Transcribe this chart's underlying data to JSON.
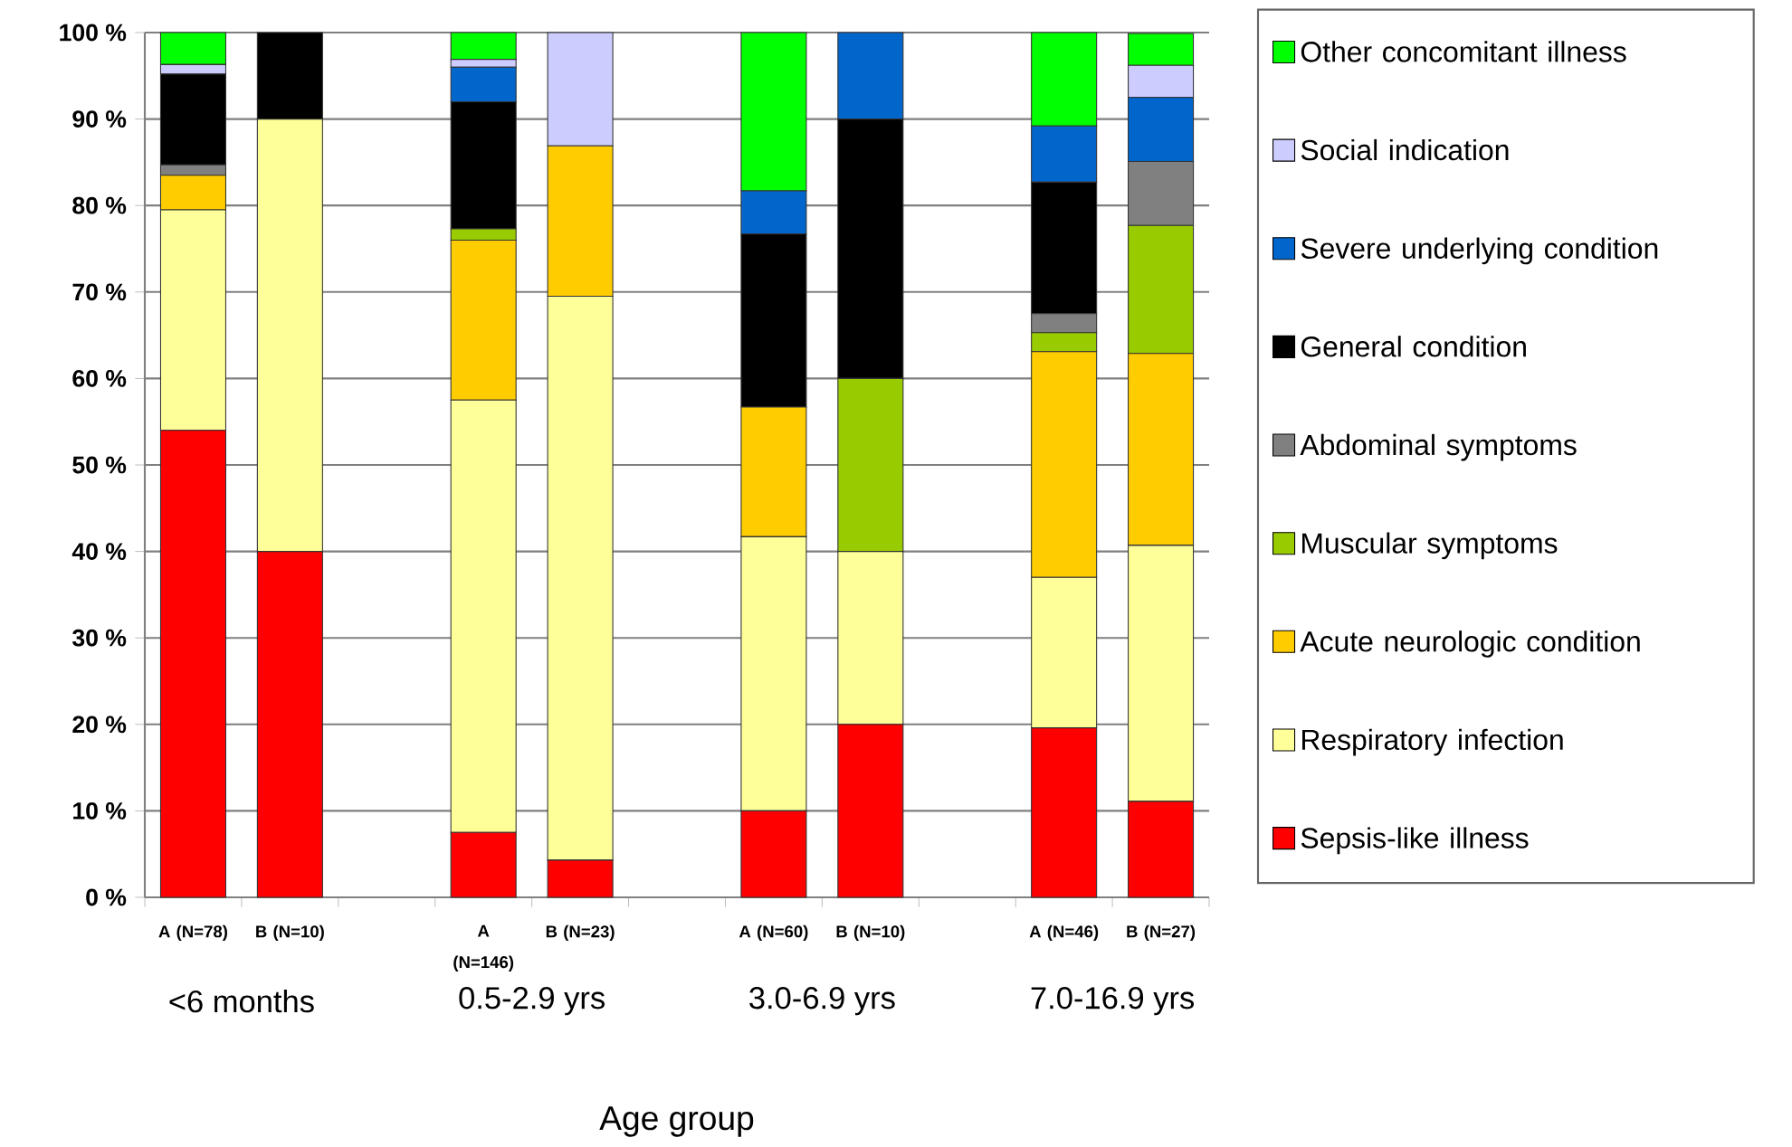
{
  "chart_data": {
    "type": "bar",
    "stacked": true,
    "xlabel": "Age group",
    "categories": [
      "A (N=78)",
      "B (N=10)",
      null,
      "A (N=146)",
      "B (N=23)",
      null,
      "A (N=60)",
      "B (N=10)",
      null,
      "A (N=46)",
      "B (N=27)"
    ],
    "series": [
      {
        "name": "Sepsis-like illness",
        "color": "#ff0000",
        "values": [
          54,
          40,
          null,
          7.5,
          4.3,
          null,
          10,
          20,
          null,
          19.6,
          11.1
        ]
      },
      {
        "name": "Respiratory infection",
        "color": "#ffff99",
        "values": [
          25.5,
          50,
          null,
          50,
          65.2,
          null,
          31.7,
          20,
          null,
          17.4,
          29.6
        ]
      },
      {
        "name": "Acute neurologic condition",
        "color": "#ffcc00",
        "values": [
          4,
          0,
          null,
          18.5,
          17.4,
          null,
          15,
          0,
          null,
          26.1,
          22.2
        ]
      },
      {
        "name": "Muscular symptoms",
        "color": "#99cc00",
        "values": [
          0,
          0,
          null,
          1.3,
          0,
          null,
          0,
          20,
          null,
          2.2,
          14.8
        ]
      },
      {
        "name": "Abdominal symptoms",
        "color": "#808080",
        "values": [
          1.2,
          0,
          null,
          0,
          0,
          null,
          0,
          0,
          null,
          2.2,
          7.4
        ]
      },
      {
        "name": "General condition",
        "color": "#000000",
        "values": [
          10.5,
          10,
          null,
          14.7,
          0,
          null,
          20,
          30,
          null,
          15.2,
          0
        ]
      },
      {
        "name": "Severe underlying condition",
        "color": "#0066cc",
        "values": [
          0,
          0,
          null,
          4,
          0,
          null,
          5,
          10,
          null,
          6.5,
          7.4
        ]
      },
      {
        "name": "Social indication",
        "color": "#ccccff",
        "values": [
          1.1,
          0,
          null,
          0.9,
          13.1,
          null,
          0,
          0,
          null,
          0,
          3.7
        ]
      },
      {
        "name": "Other concomitant illness",
        "color": "#00ff00",
        "values": [
          3.7,
          0,
          null,
          3.1,
          0,
          null,
          18.3,
          0,
          null,
          10.8,
          3.7
        ]
      }
    ],
    "annotations": [
      "<6 months",
      "0.5-2.9 yrs",
      "3.0-6.9 yrs",
      "7.0-16.9 yrs"
    ],
    "ylim": [
      0,
      100
    ],
    "yticks": [
      {
        "value": 0,
        "label": "0 %"
      },
      {
        "value": 10,
        "label": "10 %"
      },
      {
        "value": 20,
        "label": "20 %"
      },
      {
        "value": 30,
        "label": "30 %"
      },
      {
        "value": 40,
        "label": "40 %"
      },
      {
        "value": 50,
        "label": "50 %"
      },
      {
        "value": 60,
        "label": "60 %"
      },
      {
        "value": 70,
        "label": "70 %"
      },
      {
        "value": 80,
        "label": "80 %"
      },
      {
        "value": 90,
        "label": "90 %"
      },
      {
        "value": 100,
        "label": "100 %"
      }
    ],
    "grid": "y",
    "legend": "right"
  }
}
